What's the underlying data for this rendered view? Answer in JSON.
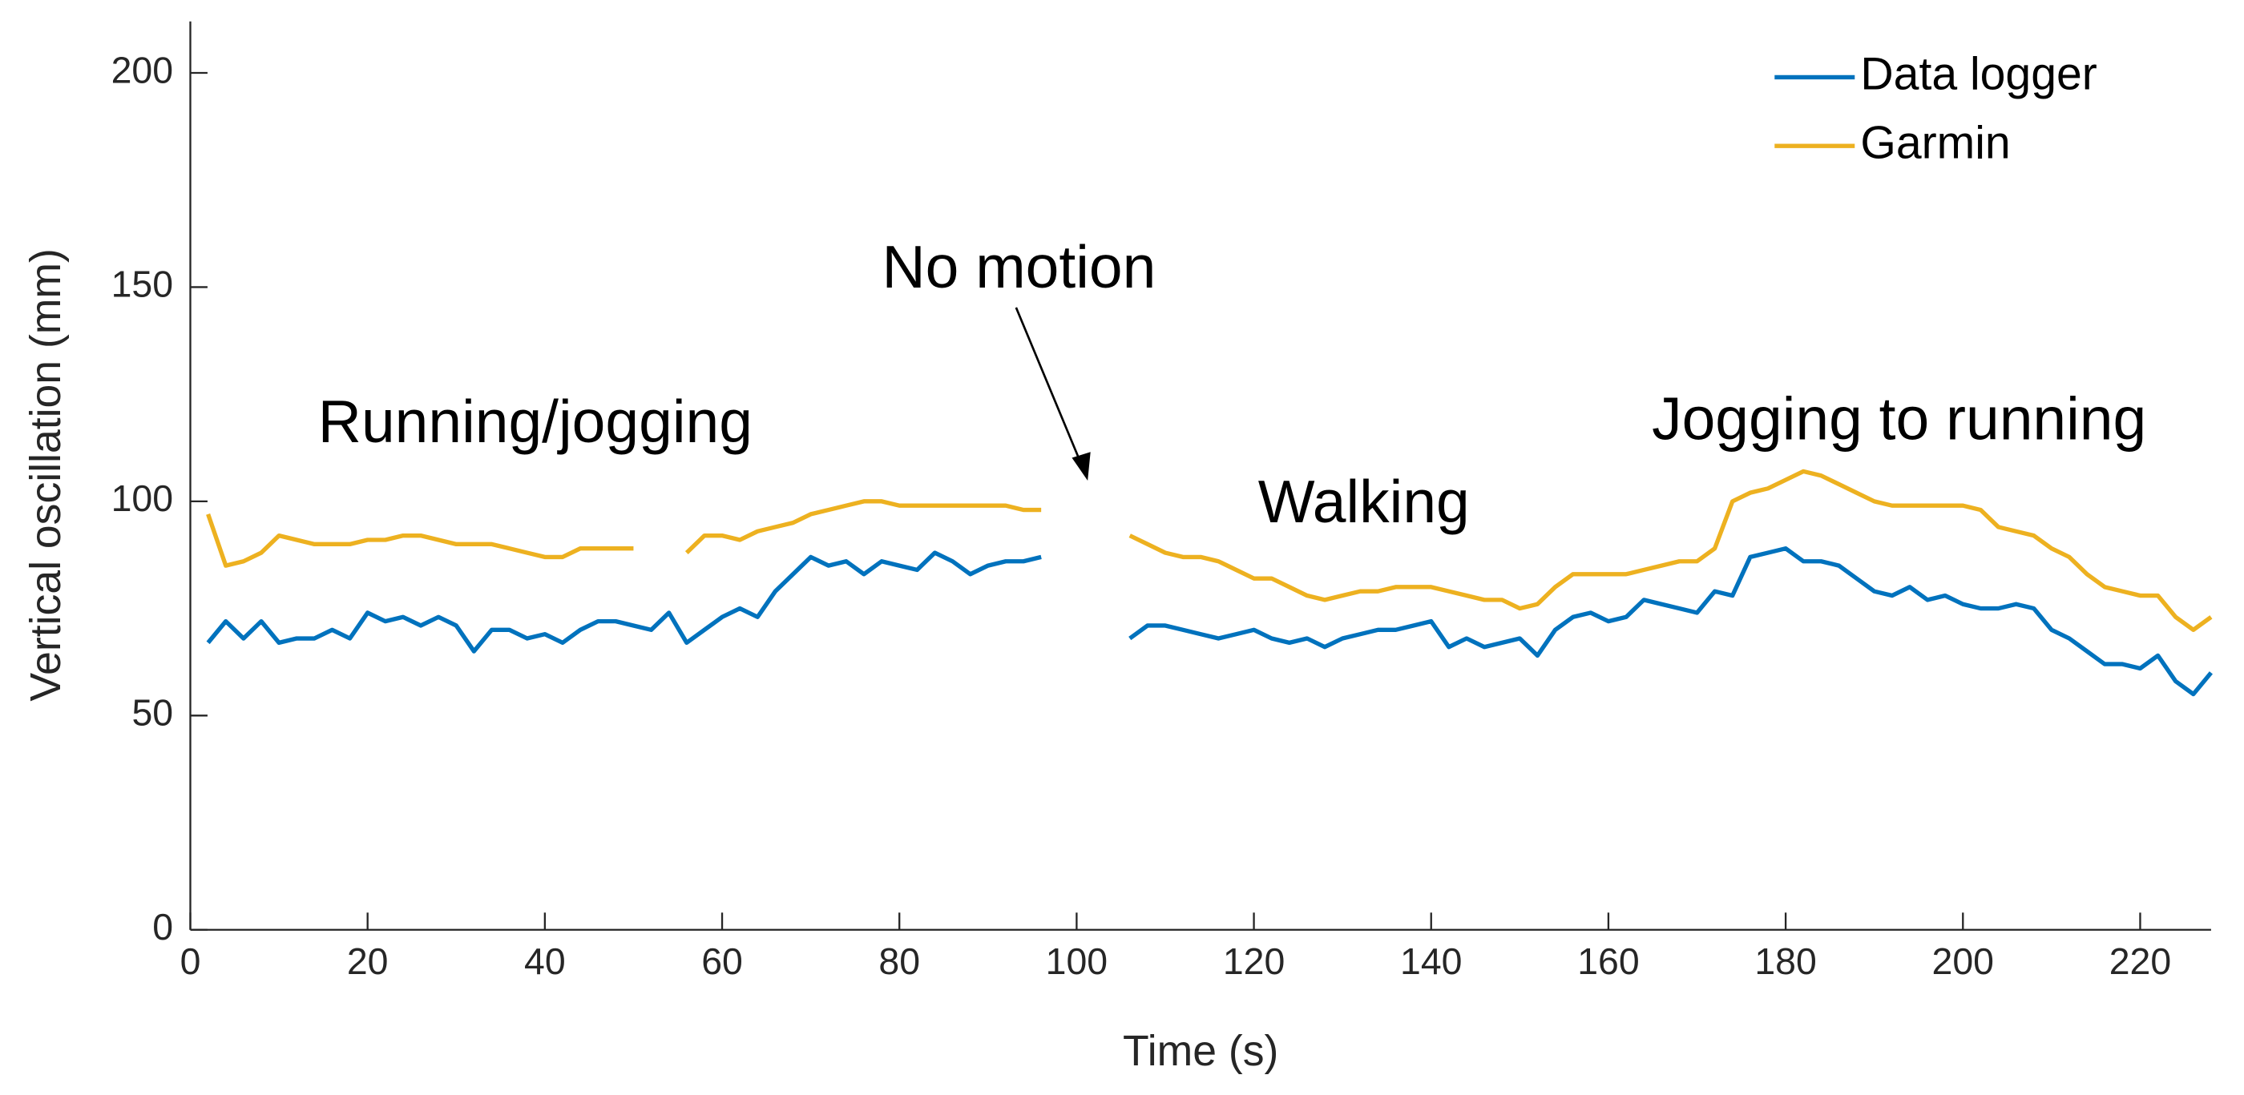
{
  "chart_data": {
    "type": "line",
    "x_label": "Time (s)",
    "y_label": "Vertical oscillation (mm)",
    "annotations": [
      "No motion",
      "Running/jogging",
      "Walking",
      "Jogging to running"
    ],
    "legend_position": "upper right",
    "grid": false,
    "xlim": [
      0,
      228
    ],
    "ylim": [
      0,
      212
    ],
    "xticks": [
      0,
      20,
      40,
      60,
      80,
      100,
      120,
      140,
      160,
      180,
      200,
      220
    ],
    "yticks": [
      0,
      50,
      100,
      150,
      200
    ],
    "x": [
      2,
      4,
      6,
      8,
      10,
      12,
      14,
      16,
      18,
      20,
      22,
      24,
      26,
      28,
      30,
      32,
      34,
      36,
      38,
      40,
      42,
      44,
      46,
      48,
      50,
      52,
      54,
      56,
      58,
      60,
      62,
      64,
      66,
      68,
      70,
      72,
      74,
      76,
      78,
      80,
      82,
      84,
      86,
      88,
      90,
      92,
      94,
      96,
      98,
      100,
      102,
      104,
      106,
      108,
      110,
      112,
      114,
      116,
      118,
      120,
      122,
      124,
      126,
      128,
      130,
      132,
      134,
      136,
      138,
      140,
      142,
      144,
      146,
      148,
      150,
      152,
      154,
      156,
      158,
      160,
      162,
      164,
      166,
      168,
      170,
      172,
      174,
      176,
      178,
      180,
      182,
      184,
      186,
      188,
      190,
      192,
      194,
      196,
      198,
      200,
      202,
      204,
      206,
      208,
      210,
      212,
      214,
      216,
      218,
      220,
      222,
      224,
      226,
      228
    ],
    "series": [
      {
        "name": "Data logger",
        "color": "#0072BD",
        "values": [
          67,
          72,
          68,
          72,
          67,
          68,
          68,
          70,
          68,
          74,
          72,
          73,
          71,
          73,
          71,
          65,
          70,
          70,
          68,
          69,
          67,
          70,
          72,
          72,
          71,
          70,
          74,
          67,
          70,
          73,
          75,
          73,
          79,
          83,
          87,
          85,
          86,
          83,
          86,
          85,
          84,
          88,
          86,
          83,
          85,
          86,
          86,
          87,
          null,
          null,
          null,
          null,
          68,
          71,
          71,
          70,
          69,
          68,
          69,
          70,
          68,
          67,
          68,
          66,
          68,
          69,
          70,
          70,
          71,
          72,
          66,
          68,
          66,
          67,
          68,
          64,
          70,
          73,
          74,
          72,
          73,
          77,
          76,
          75,
          74,
          79,
          78,
          87,
          88,
          89,
          86,
          86,
          85,
          82,
          79,
          78,
          80,
          77,
          78,
          76,
          75,
          75,
          76,
          75,
          70,
          68,
          65,
          62,
          62,
          61,
          64,
          58,
          55,
          60
        ]
      },
      {
        "name": "Garmin",
        "color": "#EDB120",
        "values": [
          97,
          85,
          86,
          88,
          92,
          91,
          90,
          90,
          90,
          91,
          91,
          92,
          92,
          91,
          90,
          90,
          90,
          89,
          88,
          87,
          87,
          89,
          89,
          89,
          89,
          null,
          null,
          88,
          92,
          92,
          91,
          93,
          94,
          95,
          97,
          98,
          99,
          100,
          100,
          99,
          99,
          99,
          99,
          99,
          99,
          99,
          98,
          98,
          null,
          null,
          null,
          null,
          92,
          90,
          88,
          87,
          87,
          86,
          84,
          82,
          82,
          80,
          78,
          77,
          78,
          79,
          79,
          80,
          80,
          80,
          79,
          78,
          77,
          77,
          75,
          76,
          80,
          83,
          83,
          83,
          83,
          84,
          85,
          86,
          86,
          89,
          100,
          102,
          103,
          105,
          107,
          106,
          104,
          102,
          100,
          99,
          99,
          99,
          99,
          99,
          98,
          94,
          93,
          92,
          89,
          87,
          83,
          80,
          79,
          78,
          78,
          73,
          70,
          73
        ]
      }
    ]
  }
}
